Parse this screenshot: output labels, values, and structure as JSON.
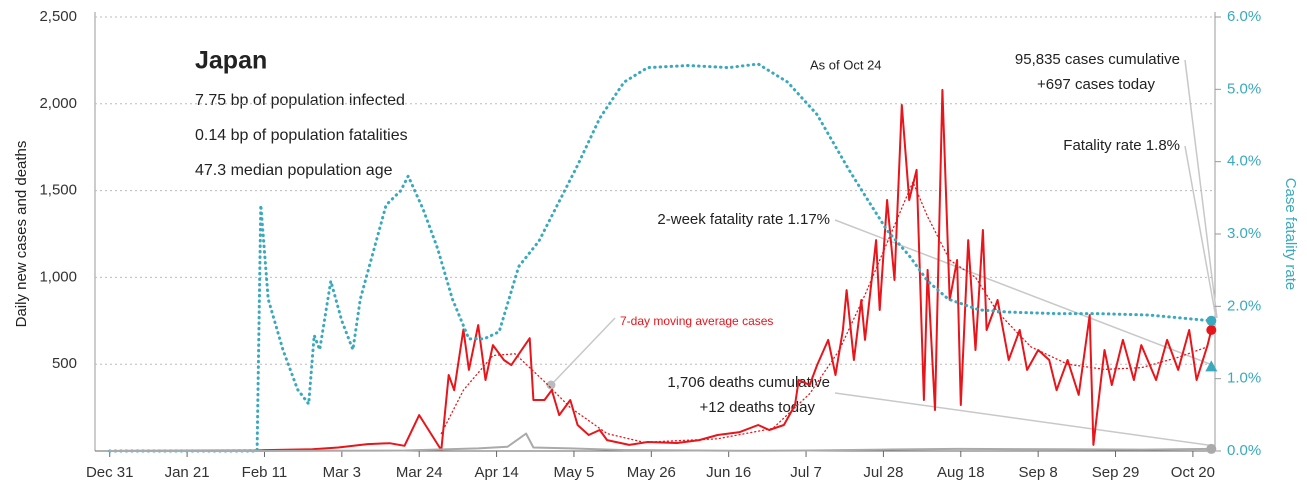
{
  "chart_data": {
    "type": "line",
    "title": "Japan",
    "info_lines": [
      "7.75 bp of population infected",
      "0.14 bp of population fatalities",
      "47.3 median population age"
    ],
    "as_of": "As of Oct 24",
    "ylabel": "Daily new cases and deaths",
    "y2label": "Case fatality rate",
    "xlim": [
      -4,
      300
    ],
    "xticks": [
      {
        "value": 0,
        "label": "Dec 31"
      },
      {
        "value": 21,
        "label": "Jan 21"
      },
      {
        "value": 42,
        "label": "Feb 11"
      },
      {
        "value": 63,
        "label": "Mar 3"
      },
      {
        "value": 84,
        "label": "Mar 24"
      },
      {
        "value": 105,
        "label": "Apr 14"
      },
      {
        "value": 126,
        "label": "May 5"
      },
      {
        "value": 147,
        "label": "May 26"
      },
      {
        "value": 168,
        "label": "Jun 16"
      },
      {
        "value": 189,
        "label": "Jul 7"
      },
      {
        "value": 210,
        "label": "Jul 28"
      },
      {
        "value": 231,
        "label": "Aug 18"
      },
      {
        "value": 252,
        "label": "Sep 8"
      },
      {
        "value": 273,
        "label": "Sep 29"
      },
      {
        "value": 294,
        "label": "Oct 20"
      }
    ],
    "ylim": [
      0,
      2500
    ],
    "yticks": [
      500,
      {
        "value": 1000,
        "label": "1,000"
      },
      {
        "value": 1500,
        "label": "1,500"
      },
      {
        "value": 2000,
        "label": "2,000"
      },
      {
        "value": 2500,
        "label": "2,500"
      }
    ],
    "y2lim": [
      0,
      6
    ],
    "y2ticks": [
      {
        "value": 0,
        "label": "0.0%"
      },
      {
        "value": 1,
        "label": "1.0%"
      },
      {
        "value": 2,
        "label": "2.0%"
      },
      {
        "value": 3,
        "label": "3.0%"
      },
      {
        "value": 4,
        "label": "4.0%"
      },
      {
        "value": 5,
        "label": "5.0%"
      },
      {
        "value": 6,
        "label": "6.0%"
      }
    ],
    "grid": true,
    "series": [
      {
        "name": "Daily cases",
        "color": "#e8151b",
        "style": "solid",
        "x": [
          0,
          20,
          40,
          42,
          55,
          62,
          70,
          76,
          80,
          84,
          90,
          92,
          93.5,
          96,
          97.5,
          100,
          102,
          104,
          107,
          109,
          114,
          115,
          118,
          120,
          122,
          125,
          127,
          130,
          133,
          135,
          141,
          146,
          154,
          160,
          165,
          171,
          176,
          179,
          183,
          186,
          187,
          190,
          192,
          195,
          197,
          199,
          200,
          202,
          204,
          205,
          208,
          209,
          211,
          213,
          215,
          217,
          219,
          221,
          222,
          224,
          226,
          228,
          230,
          231,
          233,
          235,
          237,
          238,
          241,
          244,
          247,
          249,
          252,
          255,
          257,
          260,
          263,
          266,
          267,
          270,
          272,
          275,
          278,
          280,
          284,
          287,
          290,
          293,
          295,
          298,
          299
        ],
        "values": [
          0,
          2,
          3,
          5,
          10,
          20,
          40,
          45,
          30,
          207,
          5,
          438,
          350,
          700,
          467,
          725,
          409,
          610,
          524,
          495,
          650,
          294,
          294,
          351,
          207,
          294,
          150,
          92,
          121,
          63,
          35,
          52,
          46,
          63,
          92,
          109,
          150,
          121,
          150,
          265,
          409,
          380,
          495,
          640,
          438,
          697,
          927,
          524,
          870,
          640,
          1215,
          812,
          1446,
          985,
          1993,
          1446,
          1619,
          294,
          1043,
          236,
          2080,
          870,
          1100,
          265,
          1215,
          582,
          1273,
          697,
          870,
          524,
          697,
          467,
          582,
          524,
          351,
          524,
          323,
          783,
          35,
          582,
          380,
          640,
          409,
          610,
          409,
          640,
          467,
          697,
          409,
          610,
          697
        ]
      },
      {
        "name": "7-day moving average cases",
        "color": "#e8151b",
        "style": "dotted",
        "x": [
          90,
          96,
          104,
          110,
          118,
          125,
          135,
          145,
          165,
          180,
          190,
          198,
          205,
          213,
          218,
          222,
          228,
          235,
          241,
          250,
          260,
          270,
          280,
          290,
          298
        ],
        "values": [
          100,
          350,
          550,
          560,
          400,
          250,
          100,
          50,
          70,
          130,
          330,
          580,
          900,
          1300,
          1550,
          1350,
          1100,
          1000,
          800,
          600,
          500,
          470,
          480,
          540,
          600
        ]
      },
      {
        "name": "Case fatality rate",
        "color": "#3aa9bd",
        "style": "dotted",
        "axis": "y2",
        "x": [
          0,
          40,
          41,
          43,
          47,
          51,
          54,
          55.5,
          57,
          60,
          63,
          66,
          68,
          75,
          79,
          81,
          85,
          89,
          93,
          97.5,
          101.6,
          105.7,
          111,
          116.5,
          122,
          127,
          133,
          139.6,
          146,
          157,
          168,
          176,
          184,
          192,
          200.5,
          206,
          211,
          217,
          222,
          227.6,
          236,
          244,
          257,
          268,
          282,
          299
        ],
        "values": [
          0,
          0,
          3.4,
          2.1,
          1.4,
          0.85,
          0.65,
          1.6,
          1.4,
          2.35,
          1.8,
          1.4,
          2.1,
          3.4,
          3.6,
          3.8,
          3.35,
          2.8,
          2.1,
          1.55,
          1.55,
          1.65,
          2.55,
          2.9,
          3.45,
          3.95,
          4.6,
          5.1,
          5.3,
          5.33,
          5.3,
          5.35,
          5.1,
          4.65,
          3.9,
          3.45,
          3.05,
          2.7,
          2.35,
          2.1,
          1.95,
          1.92,
          1.9,
          1.9,
          1.88,
          1.8
        ]
      },
      {
        "name": "Daily deaths",
        "color": "#aaaaaa",
        "style": "solid",
        "x": [
          0,
          40,
          60,
          80,
          100,
          108,
          113,
          115,
          125,
          140,
          170,
          190,
          210,
          230,
          260,
          280,
          299
        ],
        "values": [
          0,
          0,
          1,
          3,
          15,
          25,
          100,
          20,
          15,
          5,
          1,
          3,
          8,
          12,
          10,
          8,
          12
        ]
      }
    ],
    "annotations": [
      "95,835 cases cumulative",
      "+697 cases today",
      "Fatality rate 1.8%",
      {
        "text": "2-week fatality rate 1.17%",
        "value": 1.17
      },
      "7-day moving average cases",
      "1,706 deaths cumulative",
      "+12 deaths today"
    ]
  }
}
